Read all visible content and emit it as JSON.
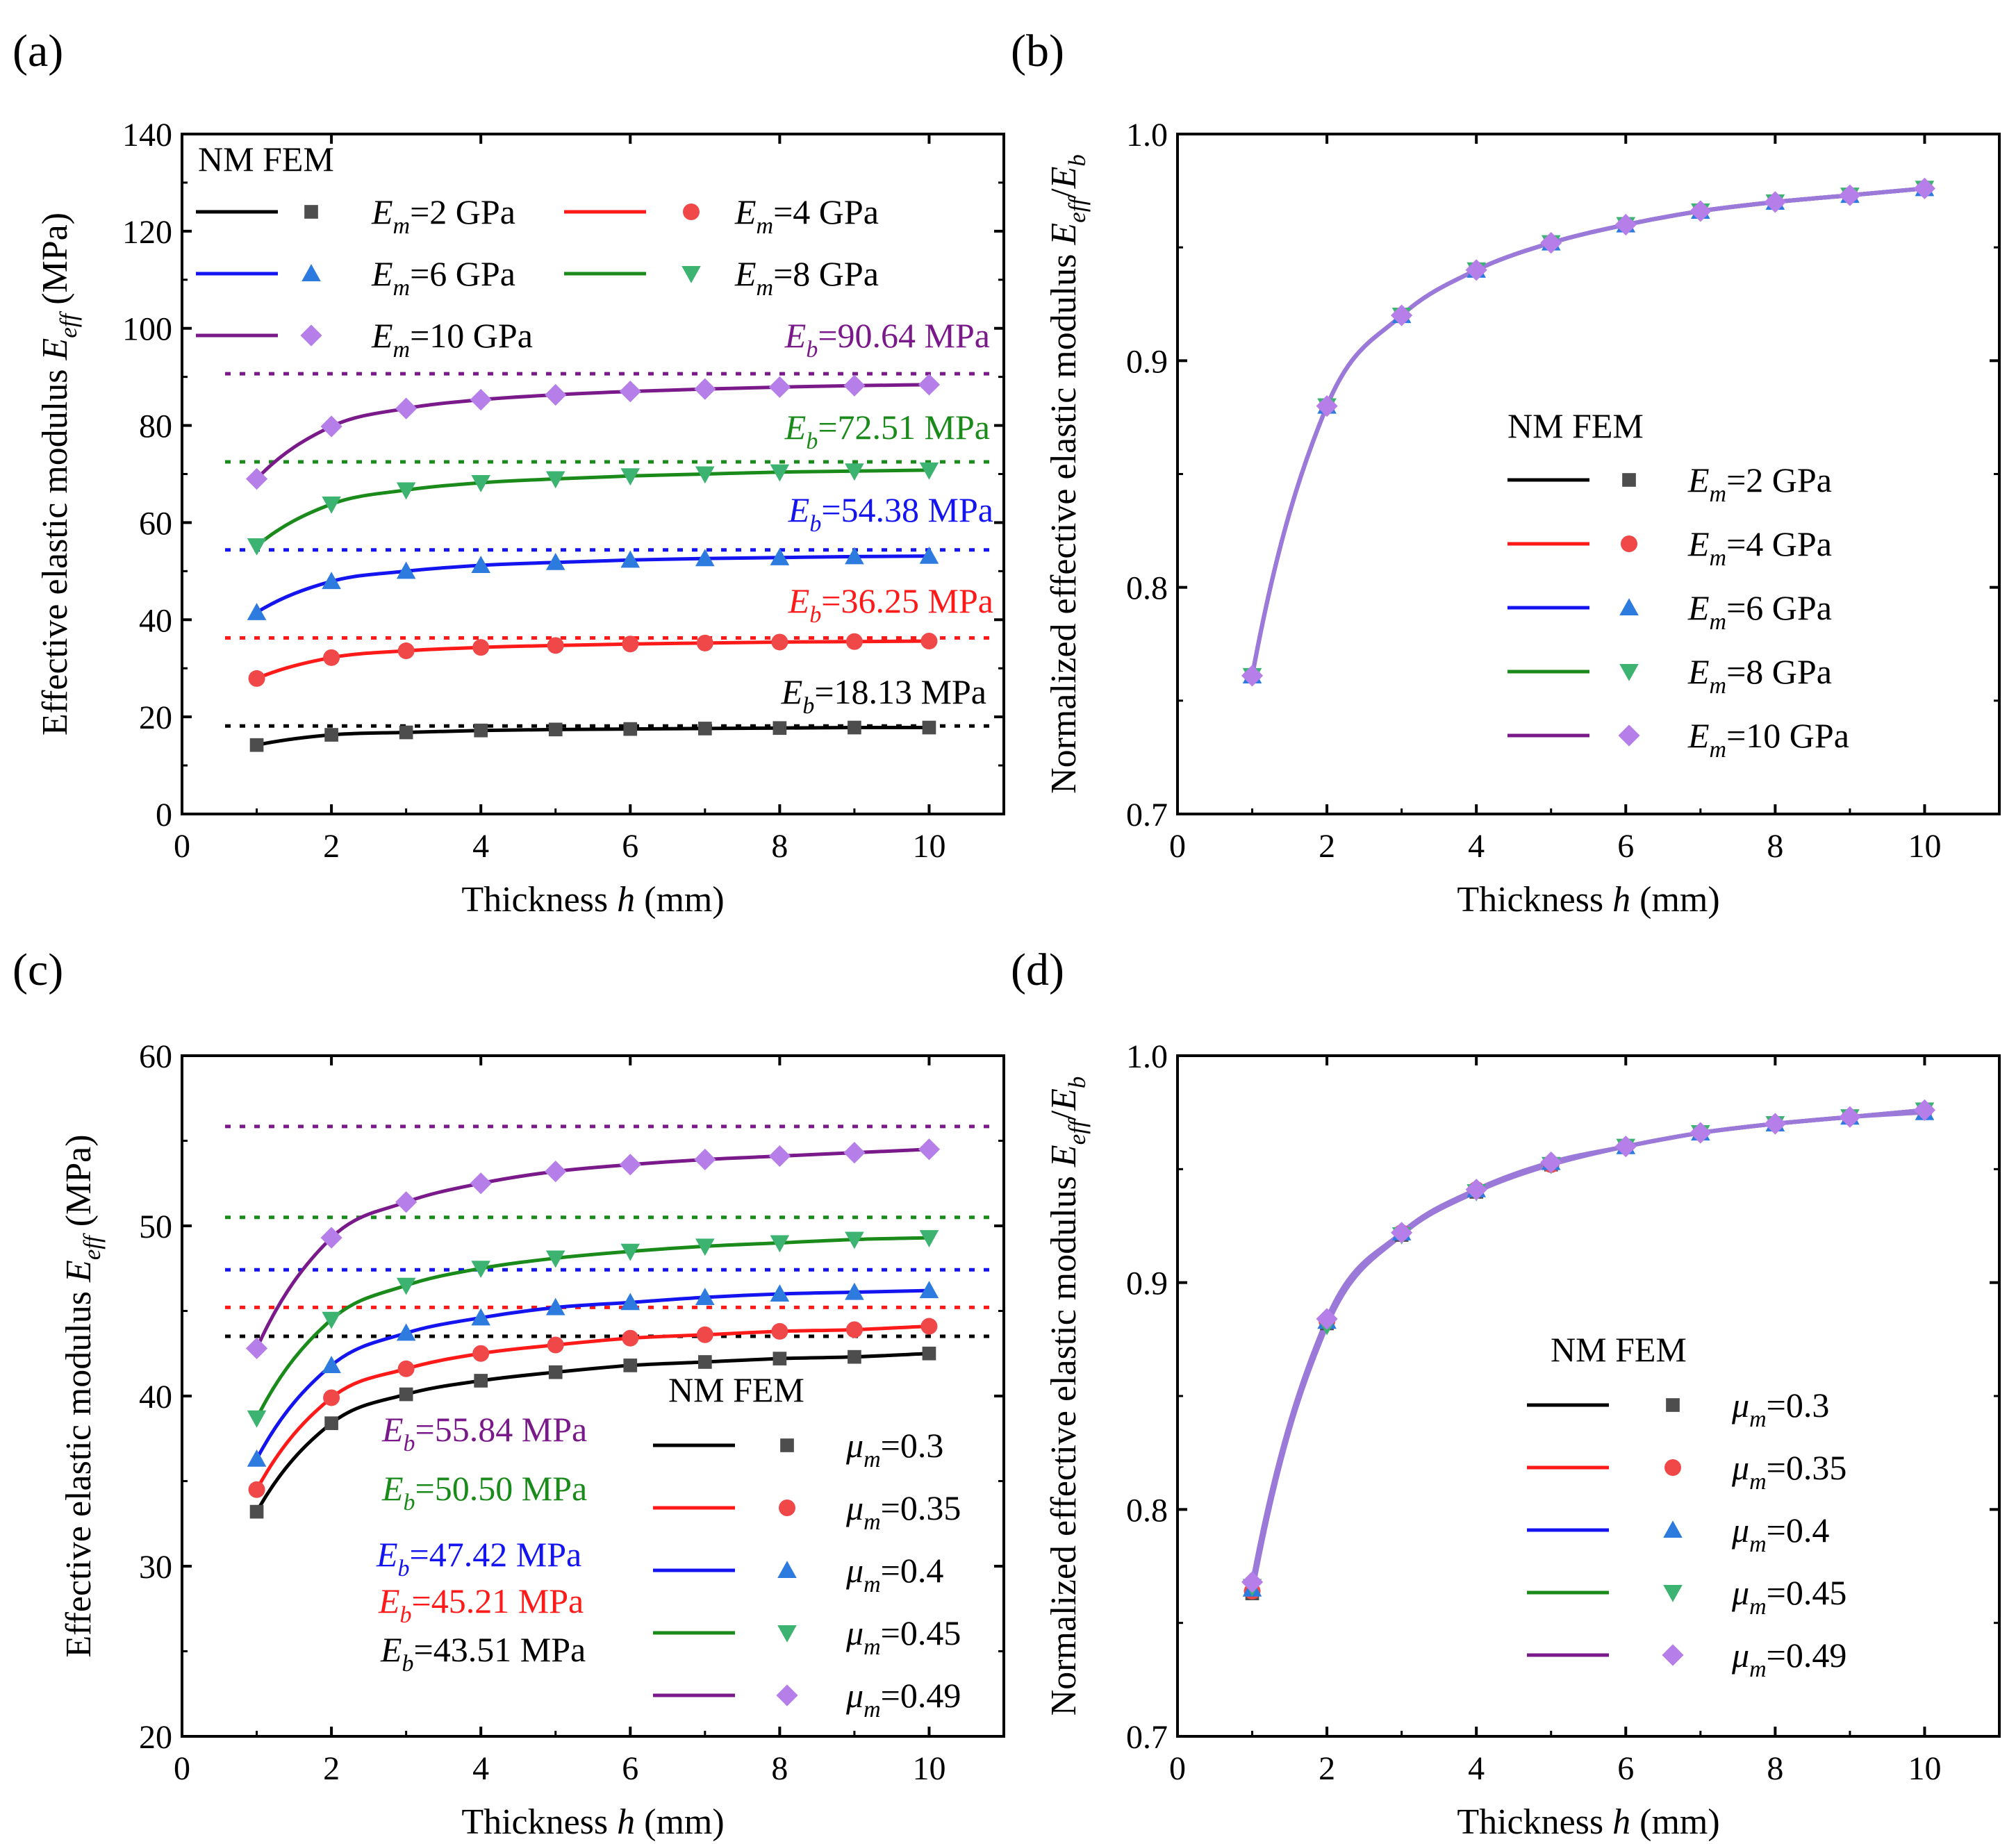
{
  "figure": {
    "panel_labels": [
      "(a)",
      "(b)",
      "(c)",
      "(d)"
    ]
  },
  "colors": {
    "black_line": "#000000",
    "black_marker": "#4d4d4d",
    "red_line": "#ff1a1a",
    "red_marker": "#f04848",
    "blue_line": "#1414f0",
    "blue_marker": "#2e7be0",
    "green_line": "#1a8a1a",
    "green_marker": "#3cb371",
    "purple_line": "#7a1a8a",
    "purple_marker": "#b57ee8",
    "eb_purple": "#7a1a8a",
    "eb_green": "#1a8a1a",
    "eb_blue": "#1414f0",
    "eb_red": "#ff1a1a",
    "eb_black": "#000000"
  },
  "chart_data": [
    {
      "id": "a",
      "type": "line",
      "panel_label": "(a)",
      "xlabel": "Thickness h (mm)",
      "xlabel_parts": [
        "Thickness ",
        "h",
        " (mm)"
      ],
      "ylabel": "Effective elastic modulus E_eff (MPa)",
      "ylabel_parts": [
        "Effective elastic modulus ",
        "E",
        "eff",
        " (MPa)"
      ],
      "xlim": [
        0,
        11
      ],
      "ylim": [
        0,
        140
      ],
      "xticks": [
        0,
        2,
        4,
        6,
        8,
        10
      ],
      "yticks": [
        0,
        20,
        40,
        60,
        80,
        100,
        120,
        140
      ],
      "legend_header": "NM FEM",
      "x": [
        1,
        2,
        3,
        4,
        5,
        6,
        7,
        8,
        9,
        10
      ],
      "series": [
        {
          "name": "E_m=2 GPa",
          "label_symbol": "E",
          "label_sub": "m",
          "label_rest": "=2 GPa",
          "line_color": "#000000",
          "marker_color": "#4d4d4d",
          "marker": "square",
          "values": [
            14.2,
            16.3,
            16.8,
            17.2,
            17.4,
            17.5,
            17.6,
            17.7,
            17.8,
            17.8
          ]
        },
        {
          "name": "E_m=4 GPa",
          "label_symbol": "E",
          "label_sub": "m",
          "label_rest": "=4 GPa",
          "line_color": "#ff1a1a",
          "marker_color": "#f04848",
          "marker": "circle",
          "values": [
            27.9,
            32.2,
            33.6,
            34.3,
            34.7,
            35.0,
            35.2,
            35.4,
            35.5,
            35.6
          ]
        },
        {
          "name": "E_m=6 GPa",
          "label_symbol": "E",
          "label_sub": "m",
          "label_rest": "=6 GPa",
          "line_color": "#1414f0",
          "marker_color": "#2e7be0",
          "marker": "triangle-up",
          "values": [
            41.5,
            47.9,
            50.0,
            51.2,
            51.8,
            52.3,
            52.6,
            52.8,
            53.0,
            53.1
          ]
        },
        {
          "name": "E_m=8 GPa",
          "label_symbol": "E",
          "label_sub": "m",
          "label_rest": "=8 GPa",
          "line_color": "#1a8a1a",
          "marker_color": "#3cb371",
          "marker": "triangle-down",
          "values": [
            55.2,
            63.8,
            66.7,
            68.2,
            69.0,
            69.6,
            70.0,
            70.4,
            70.6,
            70.8
          ]
        },
        {
          "name": "E_m=10 GPa",
          "label_symbol": "E",
          "label_sub": "m",
          "label_rest": "=10 GPa",
          "line_color": "#7a1a8a",
          "marker_color": "#b57ee8",
          "marker": "diamond",
          "values": [
            69.0,
            79.8,
            83.5,
            85.3,
            86.3,
            87.0,
            87.5,
            87.9,
            88.2,
            88.4
          ]
        }
      ],
      "reference_lines": [
        {
          "value": 90.64,
          "label_symbol": "E",
          "label_sub": "b",
          "label_rest": "=90.64 MPa",
          "color": "#7a1a8a"
        },
        {
          "value": 72.51,
          "label_symbol": "E",
          "label_sub": "b",
          "label_rest": "=72.51 MPa",
          "color": "#1a8a1a"
        },
        {
          "value": 54.38,
          "label_symbol": "E",
          "label_sub": "b",
          "label_rest": "=54.38 MPa",
          "color": "#1414f0"
        },
        {
          "value": 36.25,
          "label_symbol": "E",
          "label_sub": "b",
          "label_rest": "=36.25 MPa",
          "color": "#ff1a1a"
        },
        {
          "value": 18.13,
          "label_symbol": "E",
          "label_sub": "b",
          "label_rest": "=18.13 MPa",
          "color": "#000000"
        }
      ]
    },
    {
      "id": "b",
      "type": "line",
      "panel_label": "(b)",
      "xlabel": "Thickness h (mm)",
      "xlabel_parts": [
        "Thickness ",
        "h",
        " (mm)"
      ],
      "ylabel": "Normalized effective elastic modulus E_eff/E_b",
      "ylabel_parts": [
        "Normalized effective elastic modulus ",
        "E",
        "eff",
        "/",
        "E",
        "b"
      ],
      "xlim": [
        0,
        11
      ],
      "ylim": [
        0.7,
        1.0
      ],
      "xticks": [
        0,
        2,
        4,
        6,
        8,
        10
      ],
      "yticks": [
        0.7,
        0.8,
        0.9,
        1.0
      ],
      "ytick_labels": [
        "0.7",
        "0.8",
        "0.9",
        "1.0"
      ],
      "legend_header": "NM FEM",
      "x": [
        1,
        2,
        3,
        4,
        5,
        6,
        7,
        8,
        9,
        10
      ],
      "series": [
        {
          "name": "E_m=2 GPa",
          "label_symbol": "E",
          "label_sub": "m",
          "label_rest": "=2 GPa",
          "line_color": "#000000",
          "marker_color": "#4d4d4d",
          "marker": "square",
          "values": [
            0.761,
            0.88,
            0.92,
            0.94,
            0.952,
            0.96,
            0.966,
            0.97,
            0.973,
            0.976
          ]
        },
        {
          "name": "E_m=4 GPa",
          "label_symbol": "E",
          "label_sub": "m",
          "label_rest": "=4 GPa",
          "line_color": "#ff1a1a",
          "marker_color": "#f04848",
          "marker": "circle",
          "values": [
            0.761,
            0.88,
            0.92,
            0.94,
            0.952,
            0.96,
            0.966,
            0.97,
            0.973,
            0.976
          ]
        },
        {
          "name": "E_m=6 GPa",
          "label_symbol": "E",
          "label_sub": "m",
          "label_rest": "=6 GPa",
          "line_color": "#1414f0",
          "marker_color": "#2e7be0",
          "marker": "triangle-up",
          "values": [
            0.761,
            0.88,
            0.92,
            0.94,
            0.952,
            0.96,
            0.966,
            0.97,
            0.973,
            0.976
          ]
        },
        {
          "name": "E_m=8 GPa",
          "label_symbol": "E",
          "label_sub": "m",
          "label_rest": "=8 GPa",
          "line_color": "#1a8a1a",
          "marker_color": "#3cb371",
          "marker": "triangle-down",
          "values": [
            0.761,
            0.88,
            0.92,
            0.94,
            0.952,
            0.96,
            0.966,
            0.97,
            0.973,
            0.976
          ]
        },
        {
          "name": "E_m=10 GPa",
          "label_symbol": "E",
          "label_sub": "m",
          "label_rest": "=10 GPa",
          "line_color": "#7a1a8a",
          "marker_color": "#b57ee8",
          "marker": "diamond",
          "values": [
            0.761,
            0.88,
            0.92,
            0.94,
            0.952,
            0.96,
            0.966,
            0.97,
            0.973,
            0.976
          ]
        }
      ],
      "line_overlay_color": "#9b79d9"
    },
    {
      "id": "c",
      "type": "line",
      "panel_label": "(c)",
      "xlabel": "Thickness h (mm)",
      "xlabel_parts": [
        "Thickness ",
        "h",
        " (mm)"
      ],
      "ylabel": "Effective elastic modulus E_eff (MPa)",
      "ylabel_parts": [
        "Effective elastic modulus ",
        "E",
        "eff",
        " (MPa)"
      ],
      "xlim": [
        0,
        11
      ],
      "ylim": [
        20,
        60
      ],
      "xticks": [
        0,
        2,
        4,
        6,
        8,
        10
      ],
      "yticks": [
        20,
        30,
        40,
        50,
        60
      ],
      "legend_header": "NM  FEM",
      "x": [
        1,
        2,
        3,
        4,
        5,
        6,
        7,
        8,
        9,
        10
      ],
      "series": [
        {
          "name": "μ_m=0.3",
          "label_symbol": "μ",
          "label_sub": "m",
          "label_rest": "=0.3",
          "line_color": "#000000",
          "marker_color": "#4d4d4d",
          "marker": "square",
          "values": [
            33.2,
            38.4,
            40.1,
            40.9,
            41.4,
            41.8,
            42.0,
            42.2,
            42.3,
            42.5
          ]
        },
        {
          "name": "μ_m=0.35",
          "label_symbol": "μ",
          "label_sub": "m",
          "label_rest": "=0.35",
          "line_color": "#ff1a1a",
          "marker_color": "#f04848",
          "marker": "circle",
          "values": [
            34.5,
            39.9,
            41.6,
            42.5,
            43.0,
            43.4,
            43.6,
            43.8,
            43.9,
            44.1
          ]
        },
        {
          "name": "μ_m=0.4",
          "label_symbol": "μ",
          "label_sub": "m",
          "label_rest": "=0.4",
          "line_color": "#1414f0",
          "marker_color": "#2e7be0",
          "marker": "triangle-up",
          "values": [
            36.3,
            41.8,
            43.7,
            44.6,
            45.2,
            45.5,
            45.8,
            46.0,
            46.1,
            46.2
          ]
        },
        {
          "name": "μ_m=0.45",
          "label_symbol": "μ",
          "label_sub": "m",
          "label_rest": "=0.45",
          "line_color": "#1a8a1a",
          "marker_color": "#3cb371",
          "marker": "triangle-down",
          "values": [
            38.7,
            44.5,
            46.5,
            47.5,
            48.1,
            48.5,
            48.8,
            49.0,
            49.2,
            49.3
          ]
        },
        {
          "name": "μ_m=0.49",
          "label_symbol": "μ",
          "label_sub": "m",
          "label_rest": "=0.49",
          "line_color": "#7a1a8a",
          "marker_color": "#b57ee8",
          "marker": "diamond",
          "values": [
            42.8,
            49.3,
            51.4,
            52.5,
            53.2,
            53.6,
            53.9,
            54.1,
            54.3,
            54.5
          ]
        }
      ],
      "reference_lines": [
        {
          "value": 55.84,
          "label_symbol": "E",
          "label_sub": "b",
          "label_rest": "=55.84 MPa",
          "color": "#7a1a8a"
        },
        {
          "value": 50.5,
          "label_symbol": "E",
          "label_sub": "b",
          "label_rest": "=50.50 MPa",
          "color": "#1a8a1a"
        },
        {
          "value": 47.42,
          "label_symbol": "E",
          "label_sub": "b",
          "label_rest": "=47.42 MPa",
          "color": "#1414f0"
        },
        {
          "value": 45.21,
          "label_symbol": "E",
          "label_sub": "b",
          "label_rest": "=45.21 MPa",
          "color": "#ff1a1a"
        },
        {
          "value": 43.51,
          "label_symbol": "E",
          "label_sub": "b",
          "label_rest": "=43.51 MPa",
          "color": "#000000"
        }
      ]
    },
    {
      "id": "d",
      "type": "line",
      "panel_label": "(d)",
      "xlabel": "Thickness h (mm)",
      "xlabel_parts": [
        "Thickness ",
        "h",
        " (mm)"
      ],
      "ylabel": "Normalized effective elastic modulus E_eff/E_b",
      "ylabel_parts": [
        "Normalized effective elastic modulus ",
        "E",
        "eff",
        "/",
        "E",
        "b"
      ],
      "xlim": [
        0,
        11
      ],
      "ylim": [
        0.7,
        1.0
      ],
      "xticks": [
        0,
        2,
        4,
        6,
        8,
        10
      ],
      "yticks": [
        0.7,
        0.8,
        0.9,
        1.0
      ],
      "ytick_labels": [
        "0.7",
        "0.8",
        "0.9",
        "1.0"
      ],
      "legend_header": "NM  FEM",
      "x": [
        1,
        2,
        3,
        4,
        5,
        6,
        7,
        8,
        9,
        10
      ],
      "series": [
        {
          "name": "μ_m=0.3",
          "label_symbol": "μ",
          "label_sub": "m",
          "label_rest": "=0.3",
          "line_color": "#000000",
          "marker_color": "#4d4d4d",
          "marker": "square",
          "values": [
            0.763,
            0.882,
            0.921,
            0.94,
            0.952,
            0.96,
            0.966,
            0.97,
            0.973,
            0.976
          ]
        },
        {
          "name": "μ_m=0.35",
          "label_symbol": "μ",
          "label_sub": "m",
          "label_rest": "=0.35",
          "line_color": "#ff1a1a",
          "marker_color": "#f04848",
          "marker": "circle",
          "values": [
            0.764,
            0.883,
            0.922,
            0.941,
            0.952,
            0.96,
            0.966,
            0.97,
            0.973,
            0.976
          ]
        },
        {
          "name": "μ_m=0.4",
          "label_symbol": "μ",
          "label_sub": "m",
          "label_rest": "=0.4",
          "line_color": "#1414f0",
          "marker_color": "#2e7be0",
          "marker": "triangle-up",
          "values": [
            0.765,
            0.883,
            0.922,
            0.941,
            0.953,
            0.96,
            0.966,
            0.97,
            0.973,
            0.975
          ]
        },
        {
          "name": "μ_m=0.45",
          "label_symbol": "μ",
          "label_sub": "m",
          "label_rest": "=0.45",
          "line_color": "#1a8a1a",
          "marker_color": "#3cb371",
          "marker": "triangle-down",
          "values": [
            0.766,
            0.881,
            0.921,
            0.94,
            0.952,
            0.96,
            0.966,
            0.97,
            0.973,
            0.976
          ]
        },
        {
          "name": "μ_m=0.49",
          "label_symbol": "μ",
          "label_sub": "m",
          "label_rest": "=0.49",
          "line_color": "#7a1a8a",
          "marker_color": "#b57ee8",
          "marker": "diamond",
          "values": [
            0.768,
            0.884,
            0.922,
            0.941,
            0.953,
            0.96,
            0.966,
            0.97,
            0.973,
            0.976
          ]
        }
      ],
      "line_overlay_color": "#9b79d9"
    }
  ]
}
